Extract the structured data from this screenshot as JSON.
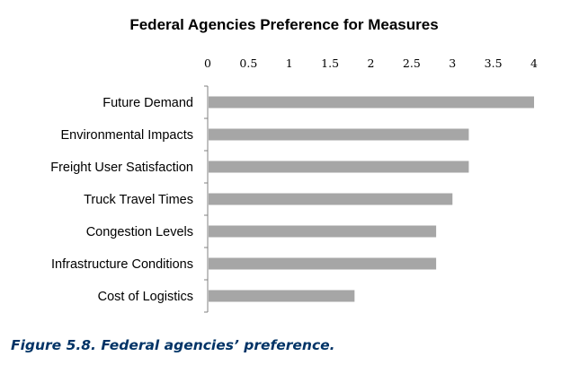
{
  "chart_data": {
    "type": "bar",
    "orientation": "horizontal",
    "title": "Federal Agencies Preference for Measures",
    "xlabel": "",
    "ylabel": "",
    "x_axis_position": "top",
    "xlim": [
      0,
      4
    ],
    "x_ticks": [
      "0",
      "0.5",
      "1",
      "1.5",
      "2",
      "2.5",
      "3",
      "3.5",
      "4"
    ],
    "categories": [
      "Future Demand",
      "Environmental Impacts",
      "Freight User Satisfaction",
      "Truck Travel Times",
      "Congestion Levels",
      "Infrastructure Conditions",
      "Cost of Logistics"
    ],
    "values": [
      4.0,
      3.2,
      3.2,
      3.0,
      2.8,
      2.8,
      1.8
    ],
    "bar_color": "#a6a6a6",
    "grid": false,
    "legend": "none"
  },
  "caption": "Figure 5.8.  Federal agencies’ preference."
}
